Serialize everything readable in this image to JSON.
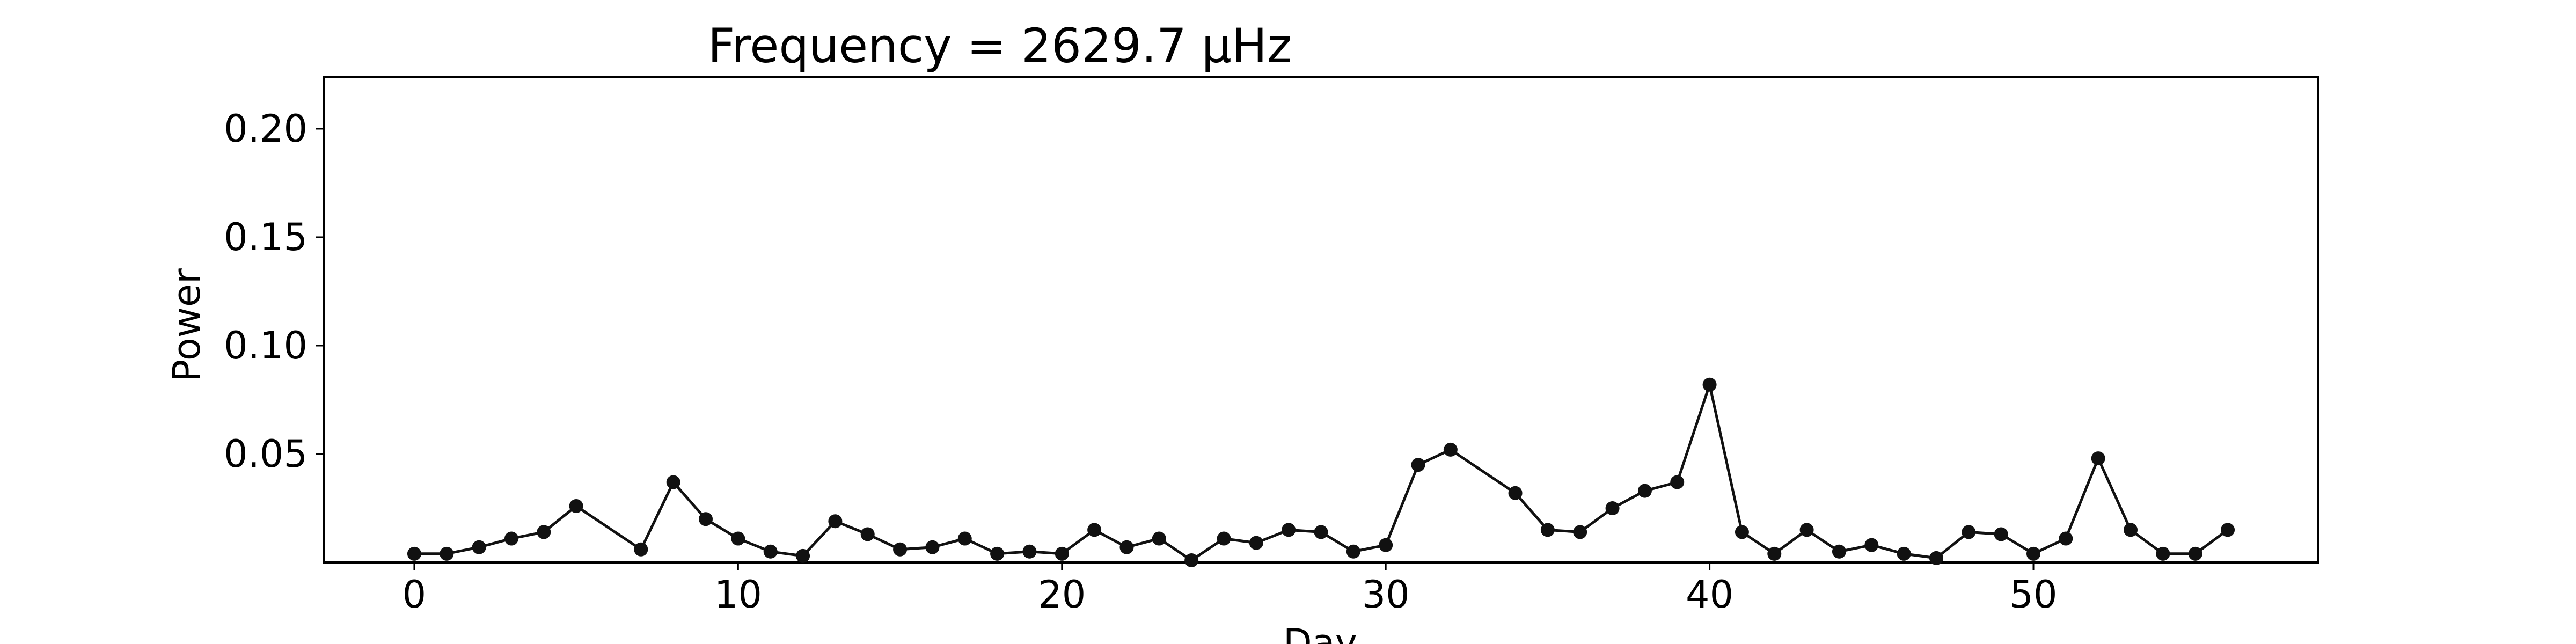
{
  "chart_data": {
    "type": "line",
    "title": "Frequency = 2629.7 μHz",
    "xlabel": "Day",
    "ylabel": "Power",
    "xlim": [
      -2.8,
      58.8
    ],
    "ylim": [
      0.0,
      0.224
    ],
    "xticks": [
      0,
      10,
      20,
      30,
      40,
      50
    ],
    "yticks": [
      0.05,
      0.1,
      0.15,
      0.2
    ],
    "ytick_labels": [
      "0.05",
      "0.10",
      "0.15",
      "0.20"
    ],
    "grid": false,
    "series": [
      {
        "color": "#111111",
        "marker": "circle",
        "points": [
          [
            0,
            0.004
          ],
          [
            1,
            0.004
          ],
          [
            2,
            0.007
          ],
          [
            3,
            0.011
          ],
          [
            4,
            0.014
          ],
          [
            5,
            0.026
          ],
          [
            7,
            0.006
          ],
          [
            8,
            0.037
          ],
          [
            9,
            0.02
          ],
          [
            10,
            0.011
          ],
          [
            11,
            0.005
          ],
          [
            12,
            0.003
          ],
          [
            13,
            0.019
          ],
          [
            14,
            0.013
          ],
          [
            15,
            0.006
          ],
          [
            16,
            0.007
          ],
          [
            17,
            0.011
          ],
          [
            18,
            0.004
          ],
          [
            19,
            0.005
          ],
          [
            20,
            0.004
          ],
          [
            21,
            0.015
          ],
          [
            22,
            0.007
          ],
          [
            23,
            0.011
          ],
          [
            24,
            0.001
          ],
          [
            25,
            0.011
          ],
          [
            26,
            0.009
          ],
          [
            27,
            0.015
          ],
          [
            28,
            0.014
          ],
          [
            29,
            0.005
          ],
          [
            30,
            0.008
          ],
          [
            31,
            0.045
          ],
          [
            32,
            0.052
          ],
          [
            34,
            0.032
          ],
          [
            35,
            0.015
          ],
          [
            36,
            0.014
          ],
          [
            37,
            0.025
          ],
          [
            38,
            0.033
          ],
          [
            39,
            0.037
          ],
          [
            40,
            0.082
          ],
          [
            41,
            0.014
          ],
          [
            42,
            0.004
          ],
          [
            43,
            0.015
          ],
          [
            44,
            0.005
          ],
          [
            45,
            0.008
          ],
          [
            46,
            0.004
          ],
          [
            47,
            0.002
          ],
          [
            48,
            0.014
          ],
          [
            49,
            0.013
          ],
          [
            50,
            0.004
          ],
          [
            51,
            0.011
          ],
          [
            52,
            0.048
          ],
          [
            53,
            0.015
          ],
          [
            54,
            0.004
          ],
          [
            55,
            0.004
          ],
          [
            56,
            0.015
          ]
        ]
      }
    ]
  }
}
